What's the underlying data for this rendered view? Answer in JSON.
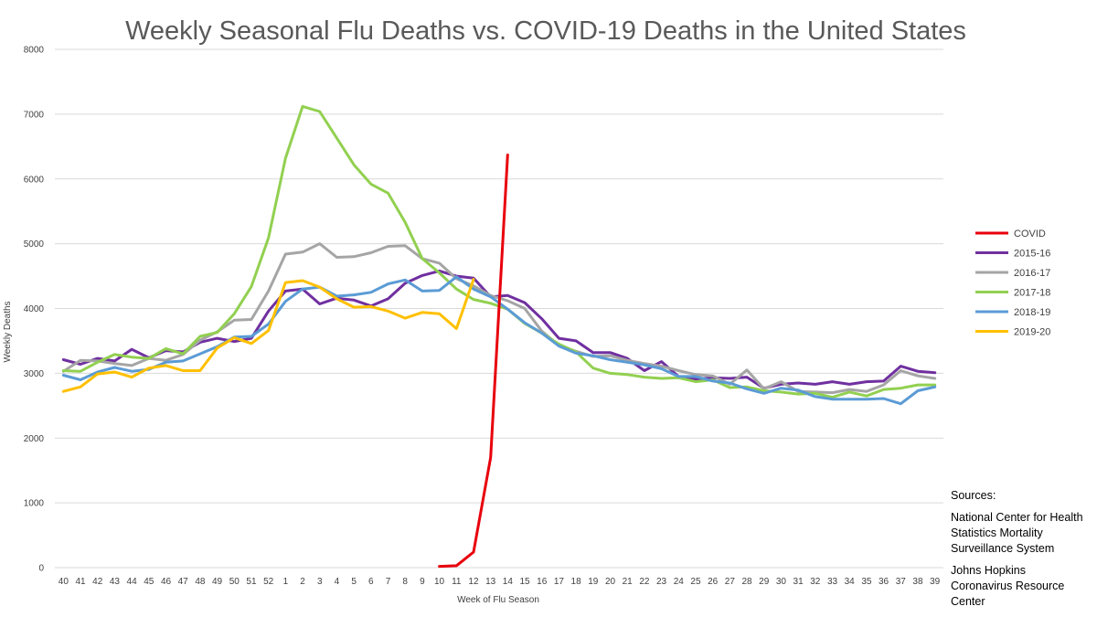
{
  "chart_data": {
    "type": "line",
    "title": "Weekly Seasonal Flu Deaths vs. COVID-19 Deaths in the United States",
    "xlabel": "Week of Flu Season",
    "ylabel": "Weekly Deaths",
    "ylim": [
      0,
      8000
    ],
    "yticks": [
      "0",
      "1000",
      "2000",
      "3000",
      "4000",
      "5000",
      "6000",
      "7000",
      "8000"
    ],
    "grid": true,
    "legend_position": "right",
    "categories": [
      "40",
      "41",
      "42",
      "43",
      "44",
      "45",
      "46",
      "47",
      "48",
      "49",
      "50",
      "51",
      "52",
      "1",
      "2",
      "3",
      "4",
      "5",
      "6",
      "7",
      "8",
      "9",
      "10",
      "11",
      "12",
      "13",
      "14",
      "15",
      "16",
      "17",
      "18",
      "19",
      "20",
      "21",
      "22",
      "23",
      "24",
      "25",
      "26",
      "27",
      "28",
      "29",
      "30",
      "31",
      "32",
      "33",
      "34",
      "35",
      "36",
      "37",
      "38",
      "39"
    ],
    "series": [
      {
        "name": "COVID",
        "color": "#e8000b",
        "values": [
          null,
          null,
          null,
          null,
          null,
          null,
          null,
          null,
          null,
          null,
          null,
          null,
          null,
          null,
          null,
          null,
          null,
          null,
          null,
          null,
          null,
          null,
          20,
          30,
          240,
          1700,
          6370,
          null,
          null,
          null,
          null,
          null,
          null,
          null,
          null,
          null,
          null,
          null,
          null,
          null,
          null,
          null,
          null,
          null,
          null,
          null,
          null,
          null,
          null,
          null,
          null,
          null
        ]
      },
      {
        "name": "2015-16",
        "color": "#7030a0",
        "values": [
          3210,
          3140,
          3230,
          3190,
          3370,
          3240,
          3350,
          3330,
          3480,
          3540,
          3490,
          3540,
          3960,
          4270,
          4300,
          4070,
          4160,
          4130,
          4040,
          4150,
          4390,
          4510,
          4580,
          4500,
          4470,
          4180,
          4200,
          4090,
          3840,
          3540,
          3500,
          3320,
          3320,
          3230,
          3040,
          3180,
          2950,
          2910,
          2930,
          2920,
          2940,
          2770,
          2830,
          2850,
          2830,
          2870,
          2830,
          2870,
          2880,
          3110,
          3030,
          3010
        ]
      },
      {
        "name": "2016-17",
        "color": "#a5a5a5",
        "values": [
          3030,
          3200,
          3190,
          3150,
          3120,
          3230,
          3200,
          3290,
          3510,
          3640,
          3820,
          3830,
          4270,
          4840,
          4870,
          5000,
          4790,
          4800,
          4860,
          4960,
          4970,
          4770,
          4700,
          4460,
          4350,
          4200,
          4120,
          4000,
          3650,
          3430,
          3340,
          3260,
          3270,
          3200,
          3150,
          3110,
          3040,
          2980,
          2960,
          2830,
          3050,
          2760,
          2870,
          2720,
          2710,
          2700,
          2750,
          2720,
          2820,
          3040,
          2960,
          2920
        ]
      },
      {
        "name": "2017-18",
        "color": "#92d050",
        "values": [
          3040,
          3030,
          3170,
          3290,
          3250,
          3230,
          3380,
          3300,
          3570,
          3630,
          3920,
          4340,
          5090,
          6320,
          7120,
          7040,
          6630,
          6220,
          5920,
          5780,
          5330,
          4770,
          4550,
          4300,
          4140,
          4080,
          3990,
          3770,
          3620,
          3450,
          3330,
          3080,
          3000,
          2980,
          2940,
          2920,
          2930,
          2870,
          2900,
          2780,
          2790,
          2730,
          2710,
          2680,
          2690,
          2630,
          2710,
          2650,
          2750,
          2770,
          2820,
          2820
        ]
      },
      {
        "name": "2018-19",
        "color": "#5b9bd5",
        "values": [
          2970,
          2900,
          3020,
          3090,
          3030,
          3060,
          3170,
          3190,
          3300,
          3410,
          3560,
          3570,
          3760,
          4110,
          4300,
          4330,
          4190,
          4210,
          4250,
          4380,
          4440,
          4270,
          4280,
          4490,
          4300,
          4180,
          3990,
          3780,
          3620,
          3420,
          3310,
          3270,
          3210,
          3170,
          3130,
          3070,
          2950,
          2950,
          2880,
          2850,
          2760,
          2690,
          2770,
          2740,
          2640,
          2600,
          2600,
          2600,
          2610,
          2530,
          2730,
          2790
        ]
      },
      {
        "name": "2019-20",
        "color": "#ffc000",
        "values": [
          2720,
          2790,
          2990,
          3020,
          2940,
          3080,
          3120,
          3040,
          3040,
          3390,
          3550,
          3460,
          3660,
          4400,
          4430,
          4330,
          4150,
          4020,
          4030,
          3960,
          3850,
          3940,
          3920,
          3690,
          4450,
          null,
          null,
          null,
          null,
          null,
          null,
          null,
          null,
          null,
          null,
          null,
          null,
          null,
          null,
          null,
          null,
          null,
          null,
          null,
          null,
          null,
          null,
          null,
          null,
          null,
          null,
          null
        ]
      }
    ]
  },
  "sources": {
    "heading": "Sources:",
    "entries": [
      [
        "National Center for Health",
        "Statistics Mortality",
        "Surveillance System"
      ],
      [
        "Johns Hopkins",
        "Coronavirus Resource",
        "Center"
      ]
    ]
  }
}
